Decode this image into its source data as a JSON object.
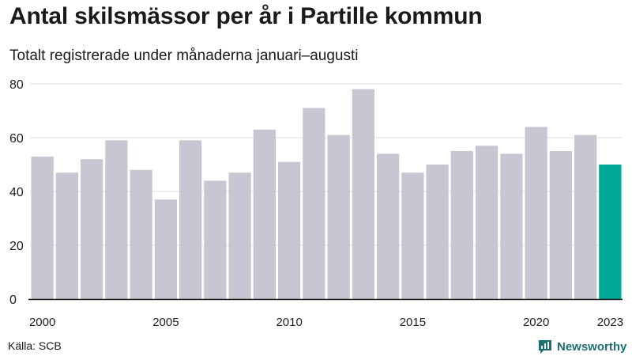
{
  "title": "Antal skilsmässor per år i Partille kommun",
  "subtitle": "Totalt registrerade under månaderna januari–augusti",
  "source": "Källa: SCB",
  "brand": {
    "name": "Newsworthy",
    "icon": "newsworthy-logo-icon"
  },
  "colors": {
    "bar": "#c8c6d2",
    "highlight": "#00a89a",
    "axis": "#111111",
    "grid": "#dddddd"
  },
  "chart_data": {
    "type": "bar",
    "categories": [
      "2000",
      "2001",
      "2002",
      "2003",
      "2004",
      "2005",
      "2006",
      "2007",
      "2008",
      "2009",
      "2010",
      "2011",
      "2012",
      "2013",
      "2014",
      "2015",
      "2016",
      "2017",
      "2018",
      "2019",
      "2020",
      "2021",
      "2022",
      "2023"
    ],
    "values": [
      53,
      47,
      52,
      59,
      48,
      37,
      59,
      44,
      47,
      63,
      51,
      71,
      61,
      78,
      54,
      47,
      50,
      55,
      57,
      54,
      64,
      55,
      61,
      50
    ],
    "highlight_category": "2023",
    "x_tick_labels": [
      "2000",
      "2005",
      "2010",
      "2015",
      "2020",
      "2023"
    ],
    "y_ticks": [
      0,
      20,
      40,
      60,
      80
    ],
    "ylim": [
      0,
      80
    ],
    "xlabel": "",
    "ylabel": "",
    "grid": true,
    "legend": "none"
  }
}
